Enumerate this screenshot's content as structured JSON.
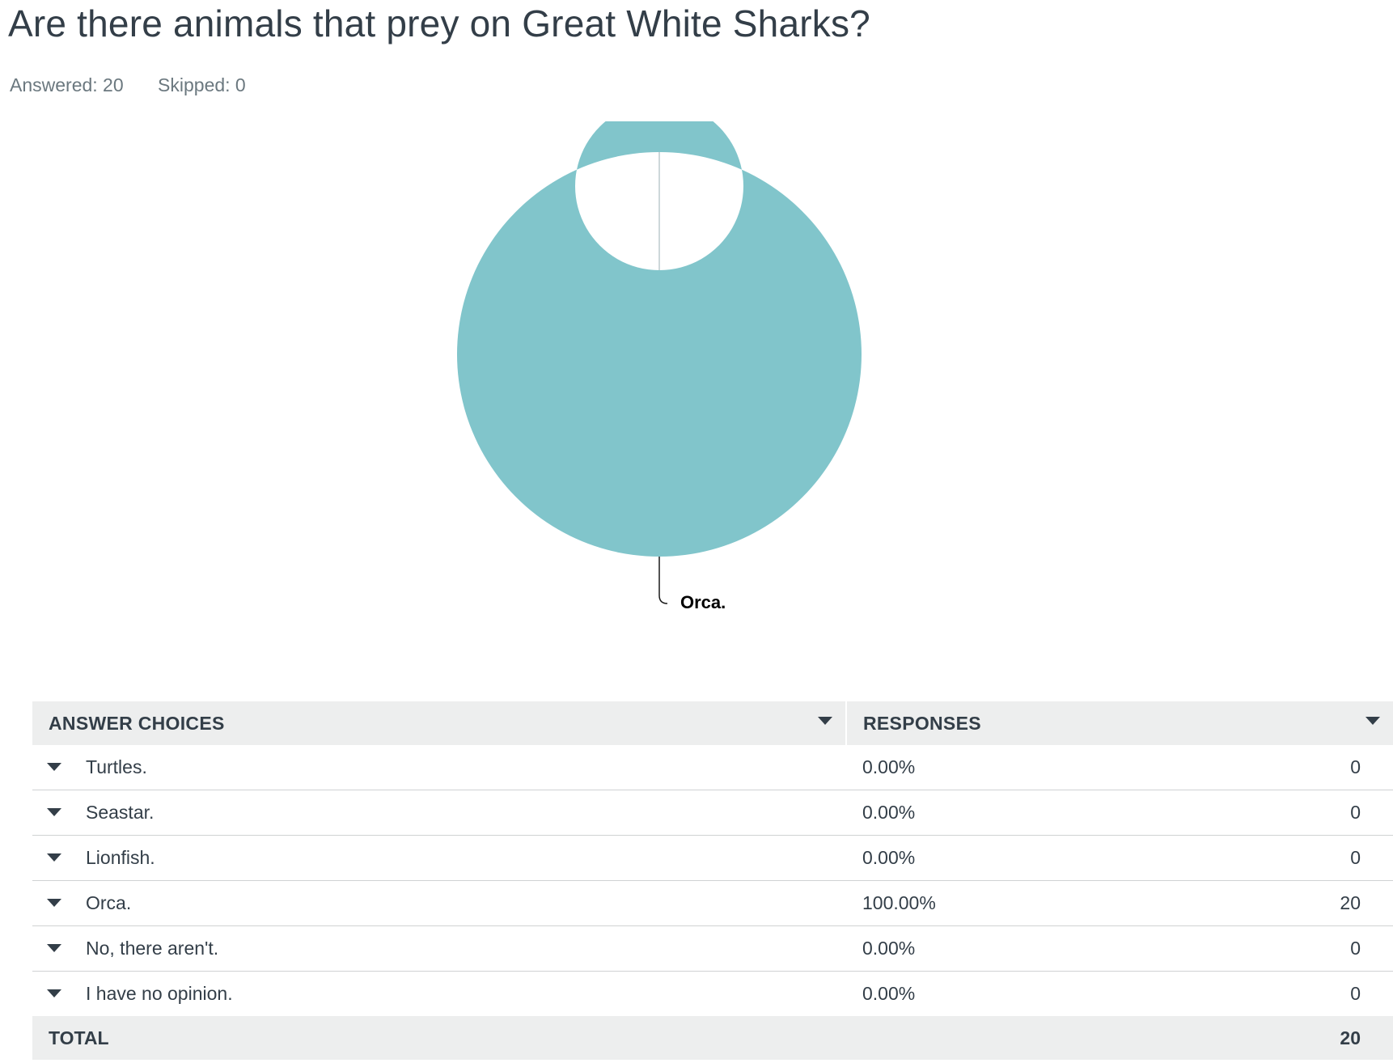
{
  "question": {
    "title": "Are there animals that prey on Great White Sharks?",
    "answered_label": "Answered: 20",
    "skipped_label": "Skipped: 0"
  },
  "chart_data": {
    "type": "pie",
    "style": "donut",
    "categories": [
      "Turtles.",
      "Seastar.",
      "Lionfish.",
      "Orca.",
      "No, there aren't.",
      "I have no opinion."
    ],
    "values": [
      0,
      0,
      0,
      20,
      0,
      0
    ],
    "percentages": [
      0,
      0,
      0,
      100,
      0,
      0
    ],
    "slice_colors": [
      "#6e9fcf",
      "#f4b86b",
      "#a6c3a0",
      "#81c5cb",
      "#d1a9cf",
      "#bfc4c8"
    ],
    "labels_shown": [
      "Orca."
    ],
    "label_placement": "bottom"
  },
  "table": {
    "headers": {
      "choice": "ANSWER CHOICES",
      "responses": "RESPONSES"
    },
    "rows": [
      {
        "choice": "Turtles.",
        "percent": "0.00%",
        "count": "0"
      },
      {
        "choice": "Seastar.",
        "percent": "0.00%",
        "count": "0"
      },
      {
        "choice": "Lionfish.",
        "percent": "0.00%",
        "count": "0"
      },
      {
        "choice": "Orca.",
        "percent": "100.00%",
        "count": "20"
      },
      {
        "choice": "No, there aren't.",
        "percent": "0.00%",
        "count": "0"
      },
      {
        "choice": "I have no opinion.",
        "percent": "0.00%",
        "count": "0"
      }
    ],
    "total_label": "TOTAL",
    "total_count": "20"
  },
  "icons": {
    "row_expand": "caret-down-icon",
    "column_sort": "caret-down-icon"
  }
}
